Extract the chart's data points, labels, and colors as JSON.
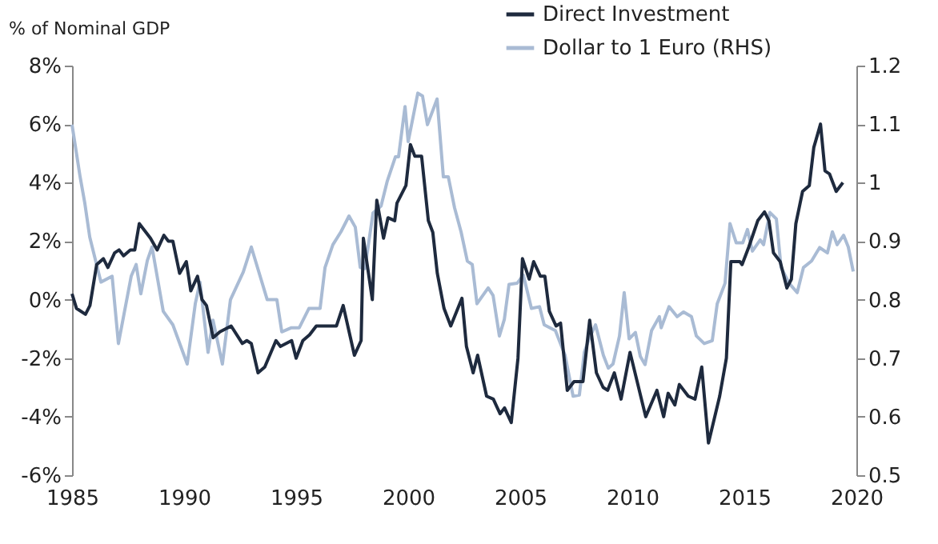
{
  "chart_data": {
    "type": "line",
    "ylabel": "% of Nominal GDP",
    "legend": "top right",
    "grid": false,
    "xlim": [
      1985,
      2020
    ],
    "xticks": [
      1985,
      1990,
      1995,
      2000,
      2005,
      2010,
      2015,
      2020
    ],
    "ylim": [
      -6,
      8
    ],
    "yticks": [
      {
        "value": -6,
        "label": "-6%"
      },
      {
        "value": -4,
        "label": "-4%"
      },
      {
        "value": -2,
        "label": "-2%"
      },
      {
        "value": 0,
        "label": "0%"
      },
      {
        "value": 2,
        "label": "2%"
      },
      {
        "value": 4,
        "label": "4%"
      },
      {
        "value": 6,
        "label": "6%"
      },
      {
        "value": 8,
        "label": "8%"
      }
    ],
    "y2lim": [
      0.5,
      1.2
    ],
    "y2ticks": [
      0.5,
      0.6,
      0.7,
      0.8,
      0.9,
      1,
      1.1,
      1.2
    ],
    "series": [
      {
        "name": "Direct Investment",
        "color": "#1e2a3e",
        "x": [
          1985.0,
          1985.2,
          1985.6,
          1985.8,
          1986.1,
          1986.4,
          1986.6,
          1986.9,
          1987.1,
          1987.3,
          1987.6,
          1987.8,
          1988.0,
          1988.5,
          1988.8,
          1989.1,
          1989.3,
          1989.5,
          1989.8,
          1990.1,
          1990.3,
          1990.6,
          1990.8,
          1991.0,
          1991.3,
          1991.6,
          1992.1,
          1992.6,
          1992.8,
          1993.0,
          1993.3,
          1993.6,
          1994.1,
          1994.3,
          1994.8,
          1995.0,
          1995.3,
          1995.6,
          1995.9,
          1996.8,
          1997.1,
          1997.6,
          1997.9,
          1998.0,
          1998.4,
          1998.6,
          1998.9,
          1999.1,
          1999.4,
          1999.5,
          1999.9,
          2000.1,
          2000.3,
          2000.6,
          2000.9,
          2001.1,
          2001.3,
          2001.6,
          2001.9,
          2002.4,
          2002.6,
          2002.9,
          2003.1,
          2003.5,
          2003.8,
          2004.1,
          2004.3,
          2004.6,
          2004.9,
          2005.1,
          2005.4,
          2005.6,
          2005.9,
          2006.1,
          2006.3,
          2006.6,
          2006.8,
          2007.1,
          2007.4,
          2007.8,
          2008.1,
          2008.4,
          2008.7,
          2008.9,
          2009.2,
          2009.5,
          2009.9,
          2010.6,
          2011.1,
          2011.4,
          2011.6,
          2011.9,
          2012.1,
          2012.5,
          2012.8,
          2013.1,
          2013.4,
          2013.9,
          2014.2,
          2014.4,
          2014.8,
          2014.9,
          2015.2,
          2015.6,
          2015.9,
          2016.1,
          2016.3,
          2016.6,
          2016.9,
          2017.1,
          2017.3,
          2017.6,
          2017.9,
          2018.1,
          2018.4,
          2018.6,
          2018.8,
          2019.1,
          2019.4
        ],
        "values": [
          0.2,
          -0.3,
          -0.5,
          -0.2,
          1.2,
          1.4,
          1.1,
          1.6,
          1.7,
          1.5,
          1.7,
          1.7,
          2.6,
          2.1,
          1.7,
          2.2,
          2.0,
          2.0,
          0.9,
          1.3,
          0.3,
          0.8,
          0.0,
          -0.2,
          -1.3,
          -1.1,
          -0.9,
          -1.5,
          -1.4,
          -1.5,
          -2.5,
          -2.3,
          -1.4,
          -1.6,
          -1.4,
          -2.0,
          -1.4,
          -1.2,
          -0.9,
          -0.9,
          -0.2,
          -1.9,
          -1.4,
          2.1,
          0.0,
          3.4,
          2.1,
          2.8,
          2.7,
          3.3,
          3.9,
          5.3,
          4.9,
          4.9,
          2.7,
          2.3,
          0.9,
          -0.3,
          -0.9,
          0.05,
          -1.6,
          -2.5,
          -1.9,
          -3.3,
          -3.4,
          -3.9,
          -3.7,
          -4.2,
          -2.0,
          1.4,
          0.7,
          1.3,
          0.8,
          0.8,
          -0.4,
          -0.9,
          -0.8,
          -3.1,
          -2.8,
          -2.8,
          -0.7,
          -2.5,
          -3.0,
          -3.1,
          -2.5,
          -3.4,
          -1.8,
          -4.0,
          -3.1,
          -4.0,
          -3.2,
          -3.6,
          -2.9,
          -3.3,
          -3.4,
          -2.3,
          -4.9,
          -3.3,
          -2.0,
          1.3,
          1.3,
          1.2,
          1.8,
          2.7,
          3.0,
          2.7,
          1.6,
          1.3,
          0.4,
          0.7,
          2.6,
          3.7,
          3.9,
          5.2,
          6.0,
          4.4,
          4.3,
          3.7,
          4.0
        ]
      },
      {
        "name": "Dollar to 1 Euro (RHS)",
        "color": "#a9bbd4",
        "axis": "y2",
        "x": [
          1985.0,
          1985.36,
          1985.57,
          1985.79,
          1986.29,
          1986.79,
          1987.07,
          1987.64,
          1987.86,
          1988.07,
          1988.36,
          1988.57,
          1989.07,
          1989.5,
          1990.14,
          1990.5,
          1990.71,
          1991.07,
          1991.29,
          1991.71,
          1992.07,
          1992.64,
          1993.0,
          1993.71,
          1994.14,
          1994.36,
          1994.79,
          1995.14,
          1995.57,
          1996.07,
          1996.29,
          1996.64,
          1997.0,
          1997.36,
          1997.64,
          1997.86,
          1998.07,
          1998.43,
          1998.79,
          1999.07,
          1999.43,
          1999.57,
          1999.86,
          2000.0,
          2000.43,
          2000.64,
          2000.86,
          2001.29,
          2001.57,
          2001.79,
          2002.07,
          2002.36,
          2002.64,
          2002.86,
          2003.07,
          2003.57,
          2003.79,
          2004.07,
          2004.29,
          2004.5,
          2004.86,
          2005.14,
          2005.5,
          2005.86,
          2006.07,
          2006.57,
          2007.0,
          2007.36,
          2007.64,
          2007.86,
          2008.07,
          2008.36,
          2008.71,
          2008.93,
          2009.14,
          2009.43,
          2009.64,
          2009.86,
          2010.14,
          2010.36,
          2010.57,
          2010.86,
          2011.21,
          2011.29,
          2011.64,
          2012.0,
          2012.29,
          2012.64,
          2012.86,
          2013.21,
          2013.57,
          2013.79,
          2014.14,
          2014.36,
          2014.64,
          2014.93,
          2015.14,
          2015.36,
          2015.71,
          2015.86,
          2016.14,
          2016.43,
          2016.64,
          2017.0,
          2017.36,
          2017.64,
          2018.0,
          2018.36,
          2018.71,
          2018.93,
          2019.14,
          2019.43,
          2019.64,
          2019.86
        ],
        "values": [
          1.099,
          1.01,
          0.965,
          0.907,
          0.83,
          0.84,
          0.725,
          0.84,
          0.86,
          0.81,
          0.867,
          0.89,
          0.78,
          0.757,
          0.69,
          0.793,
          0.83,
          0.71,
          0.765,
          0.69,
          0.8,
          0.847,
          0.89,
          0.8,
          0.8,
          0.745,
          0.752,
          0.752,
          0.785,
          0.785,
          0.855,
          0.894,
          0.916,
          0.943,
          0.924,
          0.855,
          0.853,
          0.948,
          0.96,
          1.003,
          1.044,
          1.044,
          1.13,
          1.07,
          1.153,
          1.148,
          1.099,
          1.143,
          1.01,
          1.01,
          0.957,
          0.916,
          0.866,
          0.86,
          0.793,
          0.82,
          0.807,
          0.738,
          0.766,
          0.826,
          0.828,
          0.842,
          0.785,
          0.788,
          0.757,
          0.747,
          0.705,
          0.635,
          0.637,
          0.71,
          0.733,
          0.757,
          0.705,
          0.683,
          0.69,
          0.738,
          0.812,
          0.733,
          0.744,
          0.703,
          0.689,
          0.747,
          0.771,
          0.752,
          0.788,
          0.771,
          0.779,
          0.771,
          0.738,
          0.725,
          0.73,
          0.793,
          0.828,
          0.93,
          0.897,
          0.897,
          0.92,
          0.883,
          0.902,
          0.894,
          0.949,
          0.938,
          0.855,
          0.828,
          0.812,
          0.855,
          0.866,
          0.889,
          0.88,
          0.916,
          0.894,
          0.91,
          0.89,
          0.848
        ]
      }
    ]
  }
}
